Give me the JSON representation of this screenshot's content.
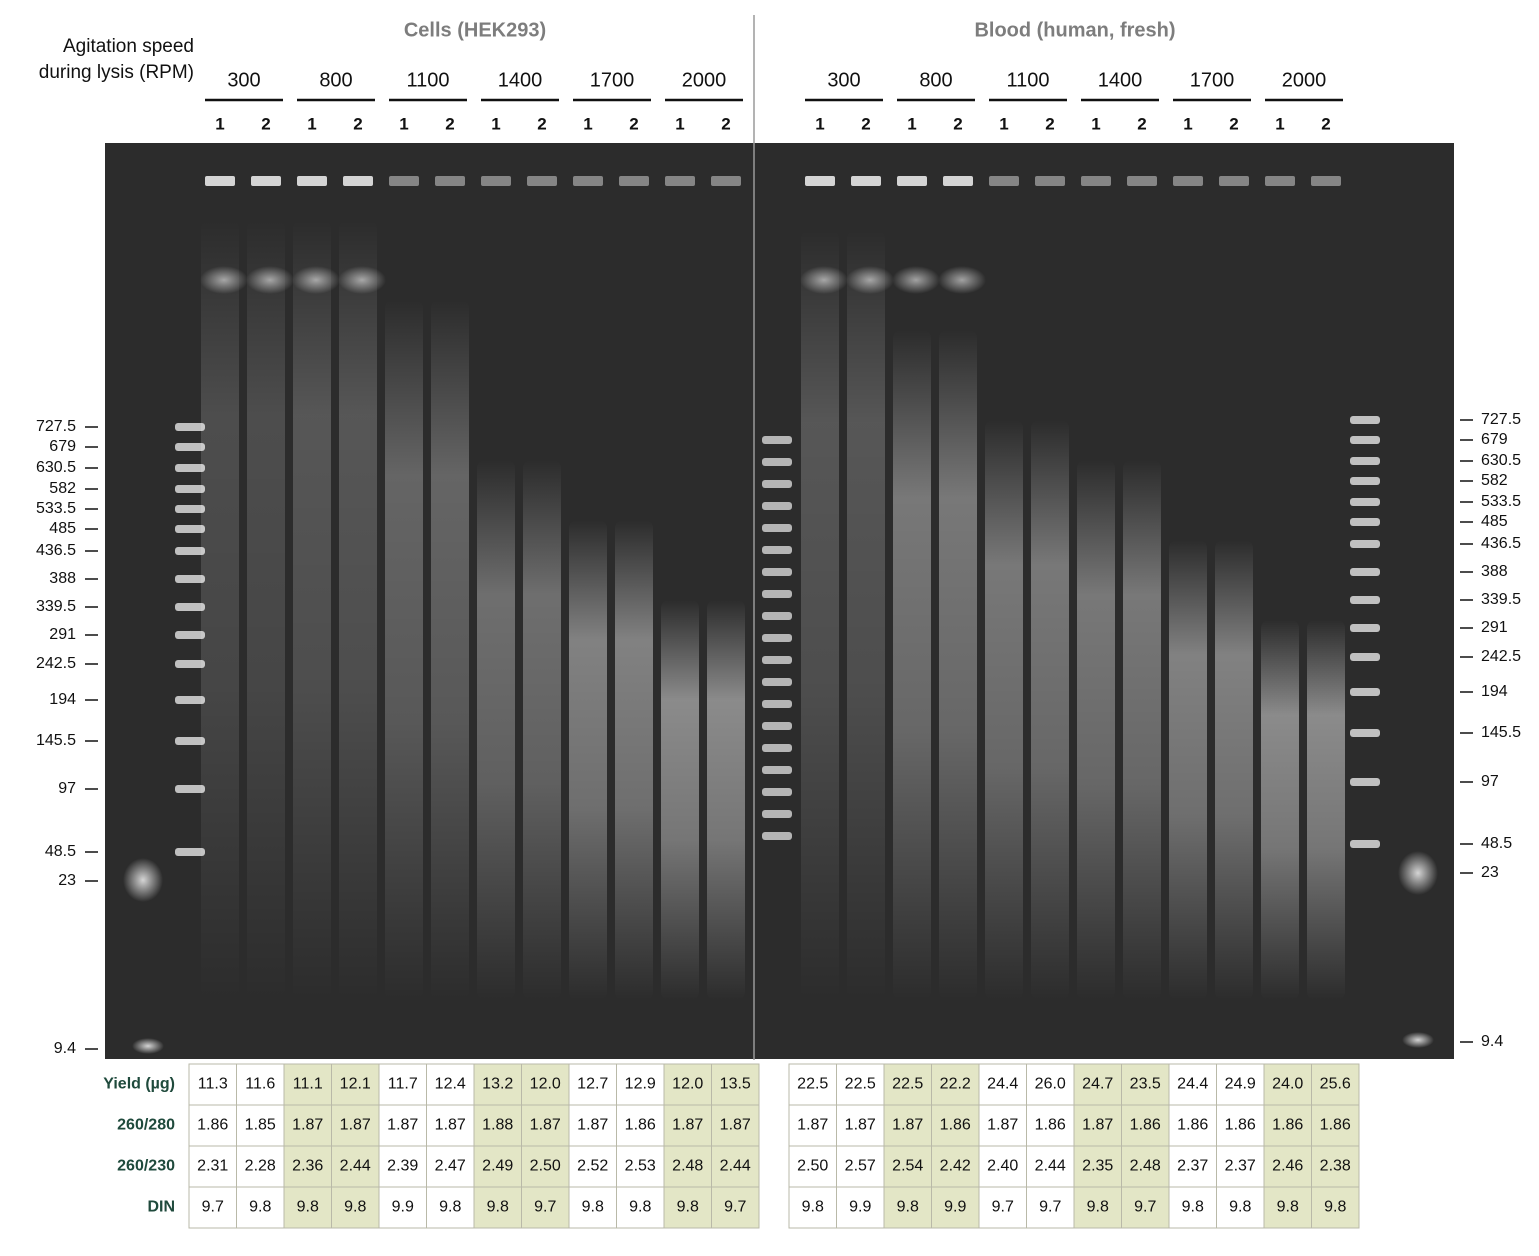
{
  "header": {
    "agitation_label_line1": "Agitation speed",
    "agitation_label_line2": "during lysis (RPM)"
  },
  "panels": [
    {
      "title": "Cells (HEK293)",
      "groups": [
        {
          "speed": "300",
          "lanes": [
            "1",
            "2"
          ]
        },
        {
          "speed": "800",
          "lanes": [
            "1",
            "2"
          ]
        },
        {
          "speed": "1100",
          "lanes": [
            "1",
            "2"
          ]
        },
        {
          "speed": "1400",
          "lanes": [
            "1",
            "2"
          ]
        },
        {
          "speed": "1700",
          "lanes": [
            "1",
            "2"
          ]
        },
        {
          "speed": "2000",
          "lanes": [
            "1",
            "2"
          ]
        }
      ],
      "table": [
        [
          "11.3",
          "11.6",
          "11.1",
          "12.1",
          "11.7",
          "12.4",
          "13.2",
          "12.0",
          "12.7",
          "12.9",
          "12.0",
          "13.5"
        ],
        [
          "1.86",
          "1.85",
          "1.87",
          "1.87",
          "1.87",
          "1.87",
          "1.88",
          "1.87",
          "1.87",
          "1.86",
          "1.87",
          "1.87"
        ],
        [
          "2.31",
          "2.28",
          "2.36",
          "2.44",
          "2.39",
          "2.47",
          "2.49",
          "2.50",
          "2.52",
          "2.53",
          "2.48",
          "2.44"
        ],
        [
          "9.7",
          "9.8",
          "9.8",
          "9.8",
          "9.9",
          "9.8",
          "9.8",
          "9.7",
          "9.8",
          "9.8",
          "9.8",
          "9.7"
        ]
      ]
    },
    {
      "title": "Blood (human, fresh)",
      "groups": [
        {
          "speed": "300",
          "lanes": [
            "1",
            "2"
          ]
        },
        {
          "speed": "800",
          "lanes": [
            "1",
            "2"
          ]
        },
        {
          "speed": "1100",
          "lanes": [
            "1",
            "2"
          ]
        },
        {
          "speed": "1400",
          "lanes": [
            "1",
            "2"
          ]
        },
        {
          "speed": "1700",
          "lanes": [
            "1",
            "2"
          ]
        },
        {
          "speed": "2000",
          "lanes": [
            "1",
            "2"
          ]
        }
      ],
      "table": [
        [
          "22.5",
          "22.5",
          "22.5",
          "22.2",
          "24.4",
          "26.0",
          "24.7",
          "23.5",
          "24.4",
          "24.9",
          "24.0",
          "25.6"
        ],
        [
          "1.87",
          "1.87",
          "1.87",
          "1.86",
          "1.87",
          "1.86",
          "1.87",
          "1.86",
          "1.86",
          "1.86",
          "1.86",
          "1.86"
        ],
        [
          "2.50",
          "2.57",
          "2.54",
          "2.42",
          "2.40",
          "2.44",
          "2.35",
          "2.48",
          "2.37",
          "2.37",
          "2.46",
          "2.38"
        ],
        [
          "9.8",
          "9.9",
          "9.8",
          "9.9",
          "9.7",
          "9.7",
          "9.8",
          "9.7",
          "9.8",
          "9.8",
          "9.8",
          "9.8"
        ]
      ]
    }
  ],
  "ladder_left": [
    "727.5",
    "679",
    "630.5",
    "582",
    "533.5",
    "485",
    "436.5",
    "388",
    "339.5",
    "291",
    "242.5",
    "194",
    "145.5",
    "97",
    "48.5",
    "23",
    "9.4"
  ],
  "ladder_right": [
    "727.5",
    "679",
    "630.5",
    "582",
    "533.5",
    "485",
    "436.5",
    "388",
    "339.5",
    "291",
    "242.5",
    "194",
    "145.5",
    "97",
    "48.5",
    "23",
    "9.4"
  ],
  "table_row_labels": [
    "Yield (µg)",
    "260/280",
    "260/230",
    "DIN"
  ]
}
